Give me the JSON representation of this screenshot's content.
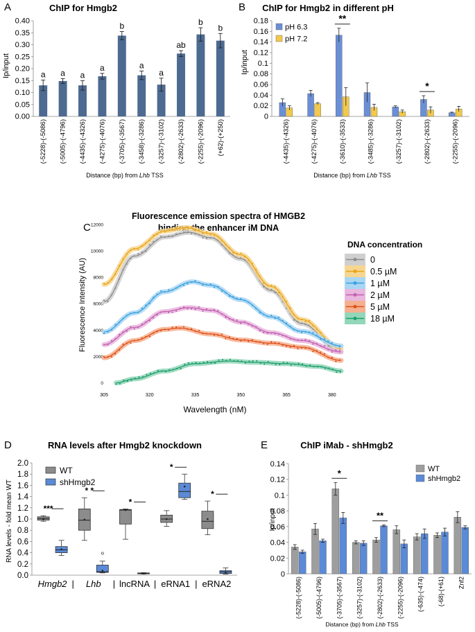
{
  "panels": {
    "A": {
      "letter": "A",
      "chart_data": {
        "type": "bar",
        "title": "ChIP for Hmgb2",
        "ylabel": "Ip/input",
        "xlabel_prefix": "Distance (bp) from ",
        "xlabel_italic": "Lhb",
        "xlabel_suffix": " TSS",
        "ylim": [
          0,
          0.4
        ],
        "yticks": [
          "0.00",
          "0.05",
          "0.10",
          "0.15",
          "0.20",
          "0.25",
          "0.30",
          "0.35",
          "0.40"
        ],
        "categories": [
          "(-5228)-(-5086)",
          "(-5005)-(-4796)",
          "(-4435)-(-4326)",
          "(-4275)-(-4076)",
          "(-3705)-(-3567)",
          "(-3458)-(-3286)",
          "(-3257)-(-3102)",
          "(-2802)-(-2633)",
          "(-2255)-(-2096)",
          "(+62)-(+250)"
        ],
        "values": [
          0.13,
          0.148,
          0.13,
          0.168,
          0.338,
          0.172,
          0.133,
          0.263,
          0.343,
          0.317
        ],
        "errors": [
          0.022,
          0.01,
          0.02,
          0.012,
          0.017,
          0.018,
          0.027,
          0.012,
          0.028,
          0.03
        ],
        "letters": [
          "a",
          "a",
          "a",
          "a",
          "b",
          "a",
          "a",
          "ab",
          "b",
          "b"
        ],
        "color": "#4d6a91"
      }
    },
    "B": {
      "letter": "B",
      "chart_data": {
        "type": "bar",
        "title": "ChIP for Hmgb2 in different pH",
        "ylabel": "Ip/input",
        "xlabel_prefix": "Distance (bp) from ",
        "xlabel_italic": "Lhb",
        "xlabel_suffix": " TSS",
        "ylim": [
          0,
          0.18
        ],
        "yticks": [
          "0",
          "0.02",
          "0.04",
          "0.06",
          "0.08",
          "0.1",
          "0.12",
          "0.14",
          "0.16",
          "0.18"
        ],
        "categories": [
          "(-4435)-(-4326)",
          "(-4275)-(-4076)",
          "(-3610)-(-3533)",
          "(-3485)-(-3286)",
          "(-3257)-(-3102)",
          "(-2802)-(-2633)",
          "(-2255)-(-2096)"
        ],
        "series": [
          {
            "name": "pH 6.3",
            "color": "#6b8fd6",
            "values": [
              0.026,
              0.043,
              0.153,
              0.045,
              0.018,
              0.032,
              0.007
            ],
            "errors": [
              0.007,
              0.006,
              0.013,
              0.018,
              0.002,
              0.007,
              0.001
            ]
          },
          {
            "name": "pH 7.2",
            "color": "#f2c94c",
            "values": [
              0.016,
              0.024,
              0.037,
              0.017,
              0.009,
              0.012,
              0.014
            ],
            "errors": [
              0.004,
              0.002,
              0.017,
              0.006,
              0.003,
              0.006,
              0.005
            ]
          }
        ],
        "significance": [
          {
            "category_index": 2,
            "label": "**"
          },
          {
            "category_index": 5,
            "label": "*"
          }
        ]
      }
    },
    "C": {
      "letter": "C",
      "chart_data": {
        "type": "line",
        "title_line1": "Fluorescence emission spectra of HMGB2",
        "title_line2": "binding the enhancer iM  DNA",
        "xlabel": "Wavelength (nM)",
        "ylabel": "Fluorescence Intensity (AU)",
        "xlim": [
          305,
          383
        ],
        "ylim": [
          -500,
          12200
        ],
        "xticks": [
          "305",
          "320",
          "335",
          "350",
          "365",
          "380"
        ],
        "yticks": [
          "0",
          "2000",
          "4000",
          "6000",
          "8000",
          "10000",
          "12000"
        ],
        "legend_title": "DNA concentration",
        "series": [
          {
            "name": "0",
            "color": "#8c8c8c",
            "halo": "#cfcfcf",
            "peak_x": 333,
            "points": [
              [
                305,
                6150
              ],
              [
                315,
                9600
              ],
              [
                325,
                11050
              ],
              [
                333,
                11400
              ],
              [
                340,
                11000
              ],
              [
                350,
                9400
              ],
              [
                360,
                7000
              ],
              [
                370,
                4500
              ],
              [
                383,
                2350
              ]
            ]
          },
          {
            "name": "0.5 µM",
            "color": "#e8a317",
            "halo": "#f6d690",
            "peak_x": 332,
            "points": [
              [
                305,
                7450
              ],
              [
                315,
                10150
              ],
              [
                325,
                11500
              ],
              [
                332,
                11750
              ],
              [
                340,
                11300
              ],
              [
                350,
                9700
              ],
              [
                360,
                7300
              ],
              [
                370,
                4800
              ],
              [
                383,
                2600
              ]
            ]
          },
          {
            "name": "1 µM",
            "color": "#3aa0e0",
            "halo": "#a9d6f2",
            "peak_x": 334,
            "points": [
              [
                305,
                3850
              ],
              [
                315,
                5300
              ],
              [
                325,
                6900
              ],
              [
                334,
                7650
              ],
              [
                340,
                7400
              ],
              [
                350,
                6300
              ],
              [
                360,
                5000
              ],
              [
                370,
                3900
              ],
              [
                383,
                2800
              ]
            ]
          },
          {
            "name": "2 µM",
            "color": "#c060b0",
            "halo": "#e9b6de",
            "peak_x": 333,
            "points": [
              [
                305,
                2900
              ],
              [
                315,
                4200
              ],
              [
                325,
                5400
              ],
              [
                333,
                5700
              ],
              [
                340,
                5500
              ],
              [
                350,
                4600
              ],
              [
                360,
                3800
              ],
              [
                370,
                3200
              ],
              [
                383,
                2350
              ]
            ]
          },
          {
            "name": "5 µM",
            "color": "#e0501a",
            "halo": "#f4b08f",
            "peak_x": 330,
            "points": [
              [
                305,
                1900
              ],
              [
                315,
                3200
              ],
              [
                325,
                4050
              ],
              [
                330,
                4150
              ],
              [
                340,
                3700
              ],
              [
                350,
                3250
              ],
              [
                360,
                3000
              ],
              [
                370,
                2700
              ],
              [
                383,
                1700
              ]
            ]
          },
          {
            "name": "18 µM",
            "color": "#1e9e6e",
            "halo": "#93d6b9",
            "peak_x": 346,
            "points": [
              [
                309,
                0
              ],
              [
                315,
                300
              ],
              [
                325,
                900
              ],
              [
                335,
                1450
              ],
              [
                346,
                1650
              ],
              [
                355,
                1550
              ],
              [
                365,
                1450
              ],
              [
                375,
                1250
              ],
              [
                383,
                900
              ]
            ]
          }
        ]
      }
    },
    "D": {
      "letter": "D",
      "chart_data": {
        "type": "box",
        "title": "RNA levels after Hmgb2 knockdown",
        "ylabel": "RNA levels - fold mean WT",
        "ylim": [
          0,
          2.0
        ],
        "yticks": [
          "0.0",
          "0.2",
          "0.4",
          "0.6",
          "0.8",
          "1.0",
          "1.2",
          "1.4",
          "1.6",
          "1.8",
          "2.0"
        ],
        "categories": [
          "Hmgb2",
          "Lhb",
          "lncRNA",
          "eRNA1",
          "eRNA2"
        ],
        "italic": [
          true,
          true,
          false,
          false,
          false
        ],
        "separator": "|",
        "legend": [
          {
            "name": "WT",
            "color": "#8c8c8c"
          },
          {
            "name": "shHmgb2",
            "color": "#5b8ad6"
          }
        ],
        "groups": [
          {
            "sig": "***",
            "boxes": [
              {
                "min": 0.96,
                "q1": 0.98,
                "median": 1.01,
                "q3": 1.04,
                "max": 1.06,
                "mean": 1.0
              },
              {
                "min": 0.35,
                "q1": 0.4,
                "median": 0.45,
                "q3": 0.51,
                "max": 0.62,
                "mean": 0.46,
                "outliers": []
              }
            ]
          },
          {
            "sig": "* *",
            "boxes": [
              {
                "min": 0.62,
                "q1": 0.8,
                "median": 0.98,
                "q3": 1.18,
                "max": 1.38,
                "mean": 0.99
              },
              {
                "min": 0.04,
                "q1": 0.05,
                "median": 0.06,
                "q3": 0.18,
                "max": 0.25,
                "mean": 0.08,
                "outliers": [
                  0.39
                ]
              }
            ]
          },
          {
            "sig": "*",
            "boxes": [
              {
                "min": 0.64,
                "q1": 0.91,
                "median": 1.16,
                "q3": 1.17,
                "max": 1.18,
                "mean": 1.16
              },
              {
                "min": 0.02,
                "q1": 0.025,
                "median": 0.03,
                "q3": 0.04,
                "max": 0.045,
                "mean": 0.03,
                "outliers": []
              }
            ]
          },
          {
            "sig": "*",
            "boxes": [
              {
                "min": 0.87,
                "q1": 0.94,
                "median": 1.0,
                "q3": 1.07,
                "max": 1.15,
                "mean": 1.0
              },
              {
                "min": 1.35,
                "q1": 1.38,
                "median": 1.49,
                "q3": 1.64,
                "max": 1.8,
                "mean": 1.58,
                "outliers": []
              }
            ]
          },
          {
            "sig": "*",
            "boxes": [
              {
                "min": 0.72,
                "q1": 0.83,
                "median": 0.96,
                "q3": 1.14,
                "max": 1.32,
                "mean": 1.0
              },
              {
                "min": 0.02,
                "q1": 0.03,
                "median": 0.06,
                "q3": 0.08,
                "max": 0.13,
                "mean": 0.05,
                "outliers": []
              }
            ]
          }
        ]
      }
    },
    "E": {
      "letter": "E",
      "chart_data": {
        "type": "bar",
        "title": "ChIP iMab - shHmgb2",
        "ylabel": "Ip/input",
        "xlabel_prefix": "Distance (bp) from ",
        "xlabel_italic": "Lhb",
        "xlabel_suffix": " TSS",
        "ylim": [
          0,
          0.14
        ],
        "yticks": [
          "0",
          "0.02",
          "0.04",
          "0.06",
          "0.08",
          "0.1",
          "0.12",
          "0.14"
        ],
        "categories": [
          "(-5228)-(-5086)",
          "(-5005)-(-4796)",
          "(-3705)-(-3567)",
          "(-3257)-(-3102)",
          "(-2802)-(-2633)",
          "(-2255)-(-2096)",
          "(-635)-(-474)",
          "(-68)-(+61)",
          "Znf2"
        ],
        "series": [
          {
            "name": "WT",
            "color": "#9e9e9e",
            "values": [
              0.034,
              0.057,
              0.108,
              0.04,
              0.043,
              0.056,
              0.047,
              0.049,
              0.072
            ],
            "errors": [
              0.003,
              0.007,
              0.008,
              0.002,
              0.003,
              0.005,
              0.004,
              0.003,
              0.007
            ]
          },
          {
            "name": "shHmgb2",
            "color": "#5b8ad6",
            "values": [
              0.028,
              0.042,
              0.071,
              0.039,
              0.061,
              0.038,
              0.051,
              0.053,
              0.059
            ],
            "errors": [
              0.002,
              0.002,
              0.007,
              0.003,
              0.001,
              0.005,
              0.006,
              0.005,
              0.002
            ]
          }
        ],
        "significance": [
          {
            "category_index": 2,
            "label": "*"
          },
          {
            "category_index": 4,
            "label": "**"
          }
        ]
      }
    }
  }
}
